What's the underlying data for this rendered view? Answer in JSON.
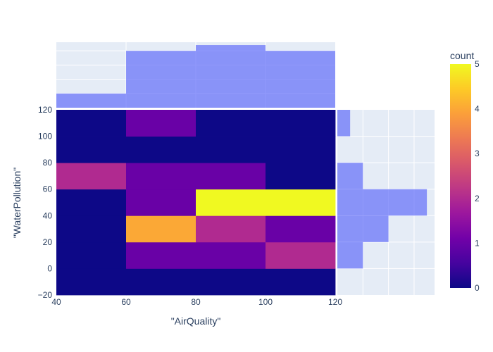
{
  "chart_data": {
    "type": "heatmap",
    "title": "",
    "xlabel": "\"AirQuality\"",
    "ylabel": "\"WaterPollution\"",
    "x_bins": [
      40,
      60,
      80,
      100,
      120
    ],
    "y_bins": [
      -20,
      0,
      20,
      40,
      60,
      80,
      100,
      120
    ],
    "xlim": [
      40,
      120
    ],
    "ylim": [
      -20,
      120
    ],
    "x_ticks": [
      "40",
      "60",
      "80",
      "100",
      "120"
    ],
    "y_ticks": [
      "−20",
      "0",
      "20",
      "40",
      "60",
      "80",
      "100",
      "120"
    ],
    "counts": [
      [
        0,
        0,
        0,
        0
      ],
      [
        0,
        1,
        1,
        2
      ],
      [
        0,
        4,
        2,
        1
      ],
      [
        0,
        1,
        5,
        5
      ],
      [
        2,
        1,
        1,
        0
      ],
      [
        0,
        0,
        0,
        0
      ],
      [
        0,
        1,
        0,
        0
      ]
    ],
    "x_marginal": {
      "type": "histogram",
      "bins": [
        40,
        60,
        80,
        100,
        120
      ],
      "counts": [
        1,
        4,
        4.4,
        4
      ]
    },
    "y_marginal": {
      "type": "histogram",
      "bins": [
        0,
        20,
        40,
        60,
        80,
        100,
        120
      ],
      "counts": [
        2,
        4,
        7,
        2,
        0,
        1
      ]
    },
    "colorbar": {
      "title": "count",
      "range": [
        0,
        5
      ],
      "ticks": [
        "0",
        "1",
        "2",
        "3",
        "4",
        "5"
      ],
      "colorscale": [
        "#0d0887",
        "#46039f",
        "#7201a8",
        "#9c179e",
        "#bd3786",
        "#d8576b",
        "#ed7953",
        "#fb9f3a",
        "#fdca26",
        "#f0f921"
      ]
    },
    "colors": {
      "plot_bg": "#e5ecf6",
      "grid": "#ffffff",
      "marginal_bar": "#636efa",
      "marginal_opacity": 0.7,
      "text": "#2a3f5f"
    },
    "grid": true
  }
}
